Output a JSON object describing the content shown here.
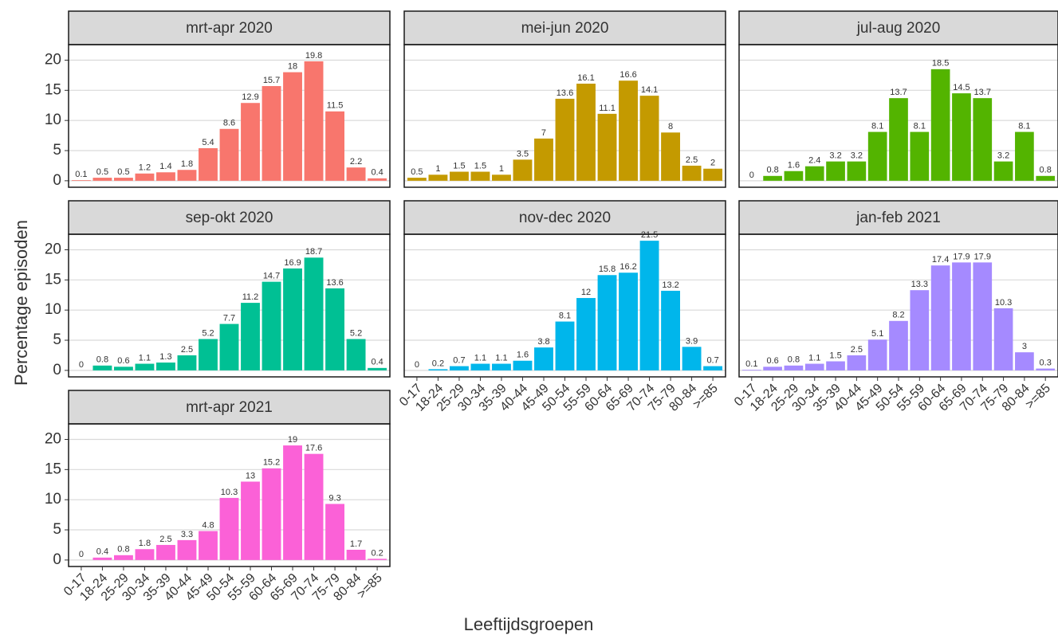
{
  "chart_data": {
    "type": "bar",
    "x_label": "Leeftijdsgroepen",
    "y_label": "Percentage episoden",
    "categories": [
      "0-17",
      "18-24",
      "25-29",
      "30-34",
      "35-39",
      "40-44",
      "45-49",
      "50-54",
      "55-59",
      "60-64",
      "65-69",
      "70-74",
      "75-79",
      "80-84",
      ">=85"
    ],
    "series": [
      {
        "name": "mrt-apr 2020",
        "color": "#F8766D",
        "values": [
          0.1,
          0.5,
          0.5,
          1.2,
          1.4,
          1.8,
          5.4,
          8.6,
          12.9,
          15.7,
          18,
          19.8,
          11.5,
          2.2,
          0.4
        ]
      },
      {
        "name": "mei-jun 2020",
        "color": "#C49A00",
        "values": [
          0.5,
          1,
          1.5,
          1.5,
          1,
          3.5,
          7,
          13.6,
          16.1,
          11.1,
          16.6,
          14.1,
          8,
          2.5,
          2
        ]
      },
      {
        "name": "jul-aug 2020",
        "color": "#53B400",
        "values": [
          0,
          0.8,
          1.6,
          2.4,
          3.2,
          3.2,
          8.1,
          13.7,
          8.1,
          18.5,
          14.5,
          13.7,
          3.2,
          8.1,
          0.8
        ]
      },
      {
        "name": "sep-okt 2020",
        "color": "#00C094",
        "values": [
          0,
          0.8,
          0.6,
          1.1,
          1.3,
          2.5,
          5.2,
          7.7,
          11.2,
          14.7,
          16.9,
          18.7,
          13.6,
          5.2,
          0.4
        ]
      },
      {
        "name": "nov-dec 2020",
        "color": "#00B6EB",
        "values": [
          0,
          0.2,
          0.7,
          1.1,
          1.1,
          1.6,
          3.8,
          8.1,
          12,
          15.8,
          16.2,
          21.5,
          13.2,
          3.9,
          0.7
        ]
      },
      {
        "name": "jan-feb 2021",
        "color": "#A58AFF",
        "values": [
          0.1,
          0.6,
          0.8,
          1.1,
          1.5,
          2.5,
          5.1,
          8.2,
          13.3,
          17.4,
          17.9,
          17.9,
          10.3,
          3,
          0.3
        ]
      },
      {
        "name": "mrt-apr 2021",
        "color": "#FB61D7",
        "values": [
          0,
          0.4,
          0.8,
          1.8,
          2.5,
          3.3,
          4.8,
          10.3,
          13,
          15.2,
          19,
          17.6,
          9.3,
          1.7,
          0.2
        ]
      }
    ],
    "ylim": [
      -1.075,
      22.575
    ],
    "yticks": [
      0,
      5,
      10,
      15,
      20
    ],
    "grid": true
  }
}
